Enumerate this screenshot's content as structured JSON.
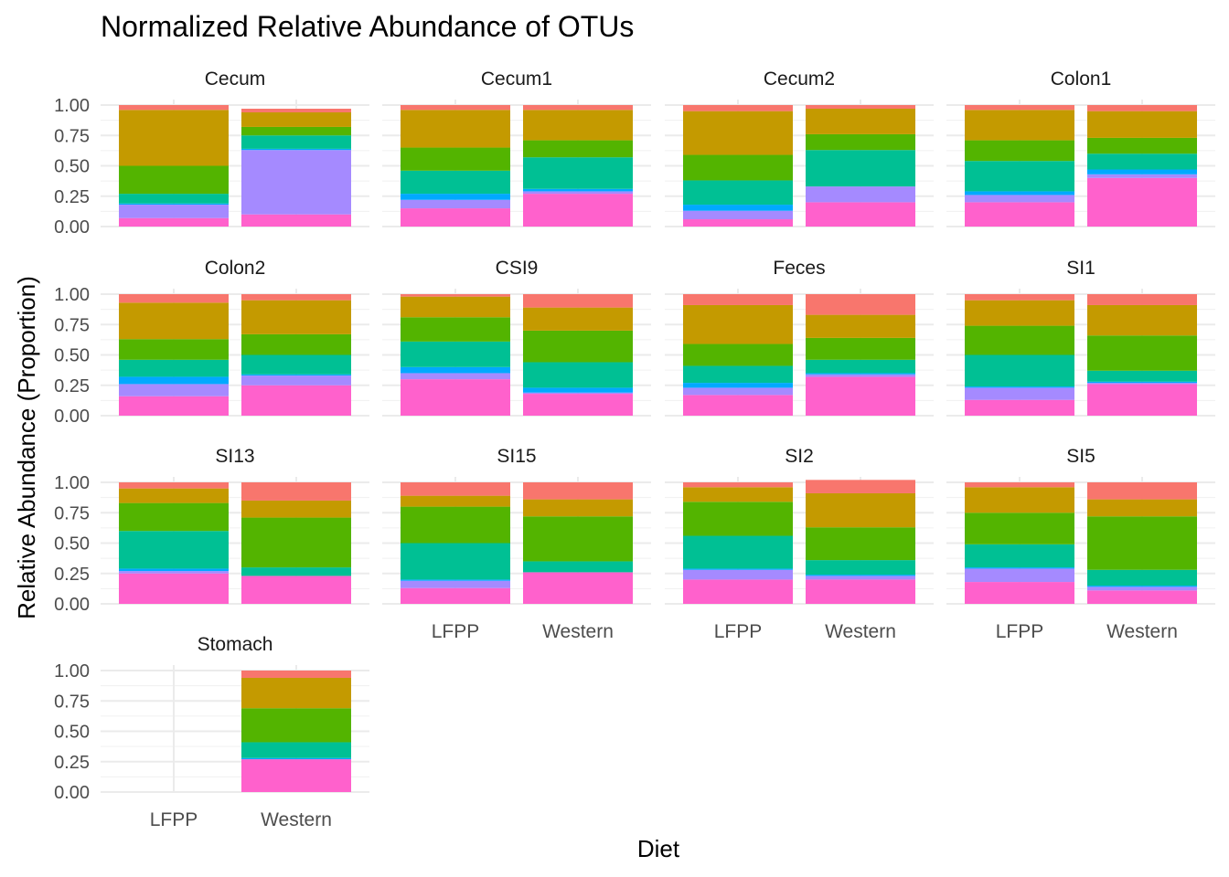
{
  "chart_data": {
    "type": "bar",
    "stacked": true,
    "title": "Normalized Relative Abundance of OTUs",
    "xlabel": "Diet",
    "ylabel": "Relative Abundance (Proportion)",
    "categories": [
      "LFPP",
      "Western"
    ],
    "ylim": [
      0,
      1
    ],
    "yticks": [
      "0.00",
      "0.25",
      "0.50",
      "0.75",
      "1.00"
    ],
    "grid": true,
    "legend": "none",
    "stack_colors": [
      "#FF61CC",
      "#A58AFF",
      "#00A9FF",
      "#00C094",
      "#53B400",
      "#C49A00",
      "#F8766D"
    ],
    "panels": [
      {
        "name": "Cecum",
        "bars": [
          [
            0.07,
            0.11,
            0.01,
            0.08,
            0.23,
            0.46,
            0.04
          ],
          [
            0.1,
            0.53,
            0.01,
            0.11,
            0.07,
            0.12,
            0.03
          ]
        ]
      },
      {
        "name": "Cecum1",
        "bars": [
          [
            0.15,
            0.07,
            0.05,
            0.19,
            0.19,
            0.31,
            0.04
          ],
          [
            0.27,
            0.02,
            0.02,
            0.26,
            0.14,
            0.25,
            0.04
          ]
        ]
      },
      {
        "name": "Cecum2",
        "bars": [
          [
            0.06,
            0.07,
            0.05,
            0.2,
            0.21,
            0.36,
            0.05
          ],
          [
            0.2,
            0.13,
            0.0,
            0.3,
            0.13,
            0.21,
            0.03
          ]
        ]
      },
      {
        "name": "Colon1",
        "bars": [
          [
            0.2,
            0.06,
            0.03,
            0.25,
            0.17,
            0.25,
            0.04
          ],
          [
            0.4,
            0.03,
            0.04,
            0.13,
            0.13,
            0.22,
            0.05
          ]
        ]
      },
      {
        "name": "Colon2",
        "bars": [
          [
            0.16,
            0.1,
            0.06,
            0.14,
            0.17,
            0.3,
            0.07
          ],
          [
            0.25,
            0.08,
            0.01,
            0.16,
            0.17,
            0.28,
            0.05
          ]
        ]
      },
      {
        "name": "CSI9",
        "bars": [
          [
            0.3,
            0.05,
            0.05,
            0.21,
            0.2,
            0.17,
            0.02
          ],
          [
            0.18,
            0.01,
            0.04,
            0.21,
            0.26,
            0.19,
            0.11
          ]
        ]
      },
      {
        "name": "Feces",
        "bars": [
          [
            0.17,
            0.06,
            0.04,
            0.14,
            0.18,
            0.32,
            0.09
          ],
          [
            0.32,
            0.02,
            0.01,
            0.11,
            0.18,
            0.19,
            0.17
          ]
        ]
      },
      {
        "name": "SI1",
        "bars": [
          [
            0.13,
            0.1,
            0.01,
            0.26,
            0.24,
            0.21,
            0.05
          ],
          [
            0.26,
            0.01,
            0.01,
            0.09,
            0.29,
            0.25,
            0.09
          ]
        ]
      },
      {
        "name": "SI13",
        "bars": [
          [
            0.25,
            0.02,
            0.02,
            0.31,
            0.23,
            0.12,
            0.05
          ],
          [
            0.23,
            0.0,
            0.0,
            0.07,
            0.41,
            0.14,
            0.15
          ]
        ]
      },
      {
        "name": "SI15",
        "bars": [
          [
            0.13,
            0.06,
            0.01,
            0.3,
            0.3,
            0.09,
            0.11
          ],
          [
            0.26,
            0.0,
            0.0,
            0.09,
            0.37,
            0.14,
            0.14
          ]
        ]
      },
      {
        "name": "SI2",
        "bars": [
          [
            0.2,
            0.08,
            0.01,
            0.27,
            0.28,
            0.12,
            0.04
          ],
          [
            0.2,
            0.03,
            0.01,
            0.12,
            0.27,
            0.28,
            0.11
          ]
        ]
      },
      {
        "name": "SI5",
        "bars": [
          [
            0.18,
            0.11,
            0.01,
            0.19,
            0.26,
            0.21,
            0.04
          ],
          [
            0.11,
            0.03,
            0.01,
            0.13,
            0.44,
            0.14,
            0.14
          ]
        ]
      },
      {
        "name": "Stomach",
        "bars": [
          null,
          [
            0.27,
            0.0,
            0.01,
            0.13,
            0.28,
            0.25,
            0.06
          ]
        ]
      }
    ]
  }
}
